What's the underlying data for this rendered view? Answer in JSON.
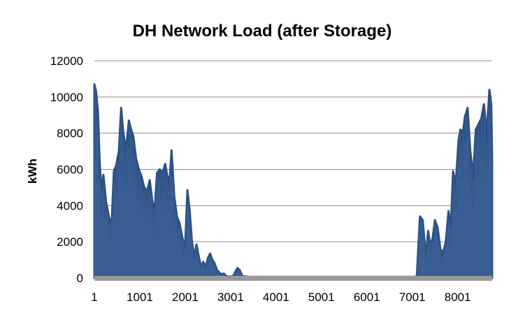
{
  "chart_data": {
    "type": "area",
    "title": "DH Network Load (after Storage)",
    "xlabel": "",
    "ylabel": "kWh",
    "xlim": [
      1,
      8760
    ],
    "ylim": [
      0,
      12000
    ],
    "grid": true,
    "legend": "none",
    "series_color": "#2b4f81",
    "axis_color": "#999999",
    "grid_color": "#8c8c8c",
    "y_ticks": [
      0,
      2000,
      4000,
      6000,
      8000,
      10000,
      12000
    ],
    "x_ticks": [
      1,
      1001,
      2001,
      3001,
      4001,
      5001,
      6001,
      7001,
      8001
    ],
    "series": [
      {
        "name": "",
        "envelope": [
          [
            1,
            10700
          ],
          [
            40,
            10300
          ],
          [
            80,
            9200
          ],
          [
            120,
            6300
          ],
          [
            160,
            4800
          ],
          [
            200,
            5700
          ],
          [
            260,
            4200
          ],
          [
            320,
            3400
          ],
          [
            380,
            2900
          ],
          [
            430,
            5900
          ],
          [
            480,
            6200
          ],
          [
            540,
            7000
          ],
          [
            590,
            9400
          ],
          [
            640,
            8000
          ],
          [
            700,
            7100
          ],
          [
            760,
            8700
          ],
          [
            800,
            8300
          ],
          [
            860,
            7800
          ],
          [
            920,
            6600
          ],
          [
            980,
            6000
          ],
          [
            1040,
            5600
          ],
          [
            1100,
            5000
          ],
          [
            1160,
            4800
          ],
          [
            1220,
            5400
          ],
          [
            1280,
            4200
          ],
          [
            1330,
            3800
          ],
          [
            1380,
            5800
          ],
          [
            1440,
            6000
          ],
          [
            1500,
            5800
          ],
          [
            1560,
            6300
          ],
          [
            1610,
            5600
          ],
          [
            1660,
            5500
          ],
          [
            1700,
            7050
          ],
          [
            1760,
            4500
          ],
          [
            1820,
            3400
          ],
          [
            1880,
            3000
          ],
          [
            1940,
            2200
          ],
          [
            2000,
            1800
          ],
          [
            2050,
            4850
          ],
          [
            2100,
            3700
          ],
          [
            2150,
            2000
          ],
          [
            2200,
            1200
          ],
          [
            2250,
            1850
          ],
          [
            2300,
            1200
          ],
          [
            2350,
            600
          ],
          [
            2400,
            900
          ],
          [
            2450,
            600
          ],
          [
            2500,
            1100
          ],
          [
            2550,
            1350
          ],
          [
            2600,
            1000
          ],
          [
            2650,
            800
          ],
          [
            2700,
            450
          ],
          [
            2750,
            300
          ],
          [
            2800,
            200
          ],
          [
            2850,
            250
          ],
          [
            2900,
            120
          ],
          [
            2950,
            80
          ],
          [
            3050,
            80
          ],
          [
            3150,
            550
          ],
          [
            3200,
            450
          ],
          [
            3260,
            100
          ],
          [
            3400,
            70
          ],
          [
            4000,
            60
          ],
          [
            5000,
            60
          ],
          [
            6000,
            60
          ],
          [
            7000,
            60
          ],
          [
            7100,
            80
          ],
          [
            7170,
            3400
          ],
          [
            7230,
            3200
          ],
          [
            7300,
            1200
          ],
          [
            7350,
            2600
          ],
          [
            7400,
            1800
          ],
          [
            7450,
            2200
          ],
          [
            7500,
            3200
          ],
          [
            7560,
            2800
          ],
          [
            7620,
            1600
          ],
          [
            7680,
            1400
          ],
          [
            7740,
            2000
          ],
          [
            7800,
            3700
          ],
          [
            7850,
            2800
          ],
          [
            7900,
            5900
          ],
          [
            7960,
            5200
          ],
          [
            8020,
            7600
          ],
          [
            8060,
            8200
          ],
          [
            8120,
            8100
          ],
          [
            8160,
            8900
          ],
          [
            8220,
            9400
          ],
          [
            8280,
            7000
          ],
          [
            8340,
            5600
          ],
          [
            8400,
            8200
          ],
          [
            8460,
            8500
          ],
          [
            8520,
            8800
          ],
          [
            8580,
            9600
          ],
          [
            8640,
            8000
          ],
          [
            8700,
            10400
          ],
          [
            8740,
            9600
          ],
          [
            8760,
            6700
          ]
        ]
      }
    ]
  }
}
